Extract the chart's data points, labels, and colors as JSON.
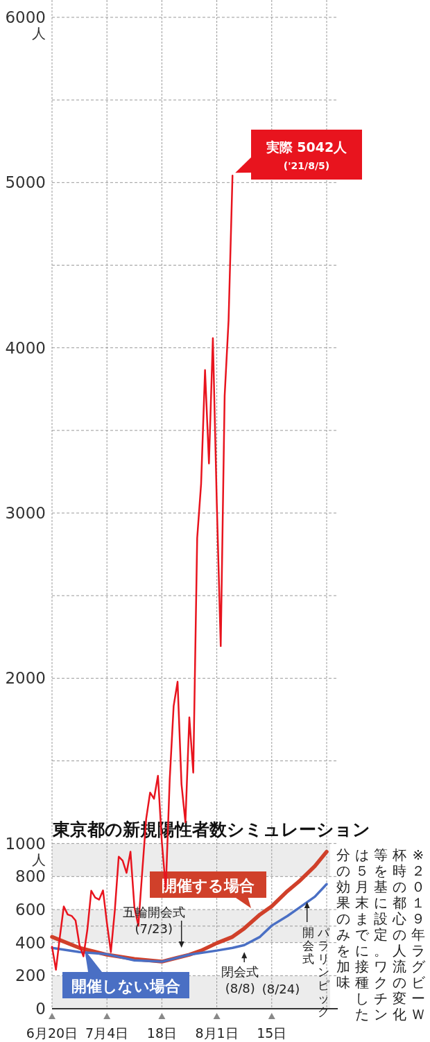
{
  "chart_data": {
    "type": "line",
    "title": "東京都の新規陽性者数シミュレーション",
    "xlim": [
      "2021-06-20",
      "2021-08-29"
    ],
    "xticks": [
      {
        "value": "2021-06-20",
        "label": "6月20日"
      },
      {
        "value": "2021-07-04",
        "label": "7月4日"
      },
      {
        "value": "2021-07-18",
        "label": "18日"
      },
      {
        "value": "2021-08-01",
        "label": "8月1日"
      },
      {
        "value": "2021-08-15",
        "label": "15日"
      },
      {
        "value": "2021-08-29",
        "label": null
      }
    ],
    "ylim": [
      0,
      6000
    ],
    "yticks": [
      0,
      200,
      400,
      600,
      800,
      {
        "value": 500,
        "label": null
      },
      {
        "value": 1000,
        "label": "1000\n人"
      },
      {
        "value": 1500,
        "label": null
      },
      2000,
      {
        "value": 2500,
        "label": null
      },
      3000,
      {
        "value": 3500,
        "label": null
      },
      4000,
      {
        "value": 4500,
        "label": null
      },
      5000,
      {
        "value": 5500,
        "label": null
      },
      {
        "value": 6000,
        "label": "6000\n人"
      }
    ],
    "grid": true,
    "bands": [
      {
        "axis": "y",
        "from": 0,
        "to": 200,
        "color": "#ececec"
      },
      {
        "axis": "y",
        "from": 400,
        "to": 600,
        "color": "#ececec"
      },
      {
        "axis": "y",
        "from": 800,
        "to": 1000,
        "color": "#ececec"
      }
    ],
    "series": [
      {
        "color": "#e8141e",
        "x": [
          "2021-06-20",
          "2021-06-21",
          "2021-06-22",
          "2021-06-23",
          "2021-06-24",
          "2021-06-25",
          "2021-06-26",
          "2021-06-27",
          "2021-06-28",
          "2021-06-29",
          "2021-06-30",
          "2021-07-01",
          "2021-07-02",
          "2021-07-03",
          "2021-07-04",
          "2021-07-05",
          "2021-07-06",
          "2021-07-07",
          "2021-07-08",
          "2021-07-09",
          "2021-07-10",
          "2021-07-11",
          "2021-07-12",
          "2021-07-13",
          "2021-07-14",
          "2021-07-15",
          "2021-07-16",
          "2021-07-17",
          "2021-07-18",
          "2021-07-19",
          "2021-07-20",
          "2021-07-21",
          "2021-07-22",
          "2021-07-23",
          "2021-07-24",
          "2021-07-25",
          "2021-07-26",
          "2021-07-27",
          "2021-07-28",
          "2021-07-29",
          "2021-07-30",
          "2021-07-31",
          "2021-08-01",
          "2021-08-02",
          "2021-08-03",
          "2021-08-04",
          "2021-08-05"
        ],
        "values": [
          376,
          236,
          435,
          619,
          570,
          562,
          534,
          386,
          317,
          476,
          714,
          673,
          660,
          716,
          518,
          342,
          593,
          920,
          896,
          822,
          950,
          614,
          502,
          830,
          1149,
          1308,
          1271,
          1410,
          1008,
          727,
          1387,
          1832,
          1979,
          1359,
          1128,
          1763,
          1429,
          2848,
          3177,
          3865,
          3300,
          4058,
          3058,
          2195,
          3709,
          4166,
          5042
        ]
      },
      {
        "name": "開催する場合",
        "color": "#d0402a",
        "x": [
          "2021-06-20",
          "2021-06-27",
          "2021-07-04",
          "2021-07-11",
          "2021-07-18",
          "2021-07-25",
          "2021-07-28",
          "2021-08-01",
          "2021-08-05",
          "2021-08-08",
          "2021-08-12",
          "2021-08-15",
          "2021-08-19",
          "2021-08-22",
          "2021-08-26",
          "2021-08-29"
        ],
        "values": [
          435,
          368,
          327,
          301,
          285,
          327,
          352,
          397,
          435,
          486,
          570,
          620,
          712,
          771,
          863,
          950
        ]
      },
      {
        "name": "開催しない場合",
        "color": "#4a6fc4",
        "x": [
          "2021-06-20",
          "2021-06-27",
          "2021-07-04",
          "2021-07-11",
          "2021-07-18",
          "2021-07-25",
          "2021-08-01",
          "2021-08-05",
          "2021-08-08",
          "2021-08-12",
          "2021-08-15",
          "2021-08-19",
          "2021-08-22",
          "2021-08-26",
          "2021-08-29"
        ],
        "values": [
          368,
          343,
          330,
          293,
          285,
          327,
          352,
          368,
          385,
          435,
          503,
          561,
          611,
          678,
          754
        ]
      }
    ],
    "annotations": [
      {
        "text": "実際 5042人\n('21/8/5)",
        "x": "2021-08-05",
        "y": 5042
      },
      {
        "text": "五輪開会式\n(7/23)",
        "x": "2021-07-23",
        "y": 327
      },
      {
        "text": "閉会式\n(8/8)",
        "x": "2021-08-08",
        "y": 385
      },
      "パラリンピック開会式",
      "(8/24)",
      "※２０１９年ラグビーＷ杯時の都心の人流の変化等を基に設定。ワクチンは５月末までに接種した分の効果のみを加味"
    ]
  }
}
